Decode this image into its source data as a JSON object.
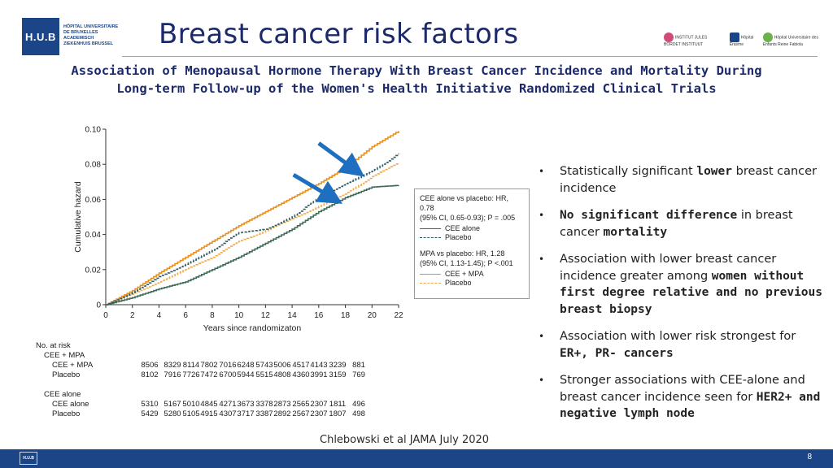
{
  "header": {
    "logo_text": "H.U.B",
    "logo_subtext": "HÔPITAL UNIVERSITAIRE DE BRUXELLES ACADEMISCH ZIEKENHUIS BRUSSEL",
    "title": "Breast cancer risk factors",
    "subtitle_line1": "Association of Menopausal Hormone Therapy With Breast Cancer Incidence and Mortality During",
    "subtitle_line2": "Long-term Follow-up of the Women's Health Initiative Randomized Clinical Trials",
    "partner_logos": [
      "INSTITUT JULES BORDET INSTITUUT",
      "Hôpital Erasme",
      "Hôpital Universitaire des Enfants Reine Fabiola"
    ]
  },
  "chart_data": {
    "type": "line",
    "xlabel": "Years since randomizaton",
    "ylabel": "Cumulative hazard",
    "xlim": [
      0,
      22
    ],
    "ylim": [
      0,
      0.1
    ],
    "x_ticks": [
      "0",
      "2",
      "4",
      "6",
      "8",
      "10",
      "12",
      "14",
      "16",
      "18",
      "20",
      "22"
    ],
    "y_ticks": [
      "0",
      "0.02",
      "0.04",
      "0.06",
      "0.08",
      "0.10"
    ],
    "x": [
      0,
      2,
      4,
      6,
      8,
      10,
      12,
      14,
      16,
      18,
      20,
      22
    ],
    "series": [
      {
        "name": "CEE + MPA",
        "color": "#e8901e",
        "dash": "solid",
        "values": [
          0,
          0.008,
          0.018,
          0.027,
          0.036,
          0.045,
          0.053,
          0.061,
          0.069,
          0.078,
          0.09,
          0.099
        ]
      },
      {
        "name": "Placebo (MPA trial)",
        "color": "#f0a848",
        "dash": "dashed",
        "values": [
          0,
          0.006,
          0.013,
          0.02,
          0.027,
          0.036,
          0.042,
          0.049,
          0.056,
          0.063,
          0.073,
          0.081
        ]
      },
      {
        "name": "CEE alone",
        "color": "#3e6b5a",
        "dash": "solid",
        "values": [
          0,
          0.004,
          0.009,
          0.013,
          0.02,
          0.027,
          0.035,
          0.043,
          0.053,
          0.061,
          0.067,
          0.068
        ]
      },
      {
        "name": "Placebo (CEE trial)",
        "color": "#2f5a62",
        "dash": "dashed",
        "values": [
          0,
          0.007,
          0.016,
          0.023,
          0.031,
          0.041,
          0.043,
          0.05,
          0.061,
          0.069,
          0.076,
          0.086
        ]
      }
    ],
    "legend": {
      "group1_title_line1": "CEE alone vs placebo: HR, 0.78",
      "group1_title_line2": "(95% CI, 0.65-0.93); P = .005",
      "group1_item1": "CEE alone",
      "group1_item2": "Placebo",
      "group2_title_line1": "MPA vs placebo: HR, 1.28",
      "group2_title_line2": "(95% CI, 1.13-1.45); P <.001",
      "group2_item1": "CEE + MPA",
      "group2_item2": "Placebo"
    },
    "annotations": [
      "arrow pointing at CEE + MPA vs placebo curves",
      "arrow pointing at CEE alone vs placebo curves"
    ]
  },
  "at_risk": {
    "title": "No. at risk",
    "group1_label": "CEE + MPA",
    "group1_rows": [
      {
        "label": "CEE + MPA",
        "values": [
          "8506",
          "8329",
          "8114",
          "7802",
          "7016",
          "6248",
          "5743",
          "5006",
          "4517",
          "4143",
          "3239",
          "881"
        ]
      },
      {
        "label": "Placebo",
        "values": [
          "8102",
          "7916",
          "7726",
          "7472",
          "6700",
          "5944",
          "5515",
          "4808",
          "4360",
          "3991",
          "3159",
          "769"
        ]
      }
    ],
    "group2_label": "CEE alone",
    "group2_rows": [
      {
        "label": "CEE alone",
        "values": [
          "5310",
          "5167",
          "5010",
          "4845",
          "4271",
          "3673",
          "3378",
          "2873",
          "2565",
          "2307",
          "1811",
          "496"
        ]
      },
      {
        "label": "Placebo",
        "values": [
          "5429",
          "5280",
          "5105",
          "4915",
          "4307",
          "3717",
          "3387",
          "2892",
          "2567",
          "2307",
          "1807",
          "498"
        ]
      }
    ]
  },
  "bullets": {
    "b1_pre": "Statistically significant ",
    "b1_bold": "lower",
    "b1_post": " breast cancer incidence",
    "b2_bold": "No significant difference",
    "b2_mid": " in breast cancer ",
    "b2_bold2": "mortality",
    "b3_pre": "Association with lower breast cancer incidence greater among ",
    "b3_bold": "women without first degree relative and no previous breast biopsy",
    "b4_pre": " Association with lower risk strongest for ",
    "b4_bold": "ER+, PR- cancers",
    "b5_pre": "Stronger associations with CEE-alone and breast cancer incidence seen for ",
    "b5_bold": "HER2+  and negative lymph node"
  },
  "citation": "Chlebowski et al JAMA July 2020",
  "footer": {
    "logo_text": "H.U.B",
    "page_number": "8"
  },
  "colors": {
    "brand_blue": "#1c4587",
    "title_blue": "#1c2a6a",
    "arrow_blue": "#1f6fc0"
  }
}
